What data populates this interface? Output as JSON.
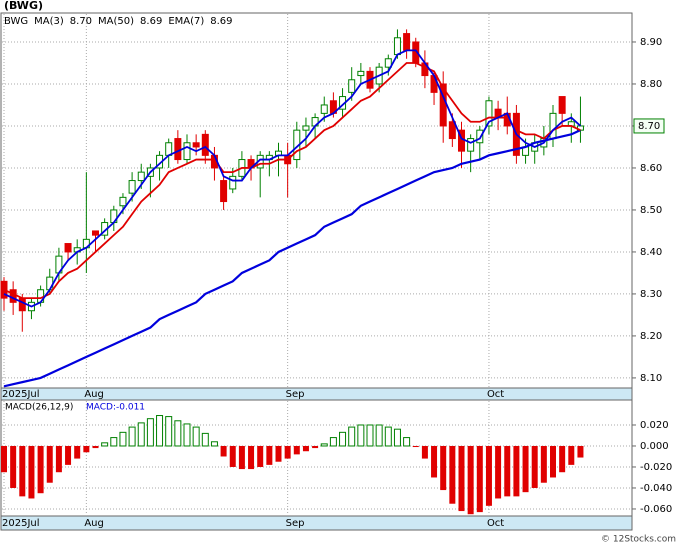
{
  "chart_data": [
    {
      "type": "candlestick",
      "title": "(BWG)",
      "categories": [
        "2025Jul",
        null,
        null,
        null,
        null,
        null,
        null,
        null,
        null,
        "Aug",
        null,
        null,
        null,
        null,
        null,
        null,
        null,
        null,
        null,
        null,
        null,
        null,
        null,
        null,
        null,
        null,
        null,
        null,
        null,
        null,
        null,
        "Sep",
        null,
        null,
        null,
        null,
        null,
        null,
        null,
        null,
        null,
        null,
        null,
        null,
        null,
        null,
        null,
        null,
        null,
        null,
        null,
        null,
        null,
        "Oct",
        null,
        null,
        null,
        null,
        null,
        null,
        null,
        null,
        null,
        null
      ],
      "open": [
        8.33,
        8.31,
        8.29,
        8.26,
        8.28,
        8.31,
        8.35,
        8.42,
        8.4,
        8.41,
        8.45,
        8.44,
        8.47,
        8.51,
        8.54,
        8.57,
        8.58,
        8.6,
        8.63,
        8.67,
        8.62,
        8.66,
        8.68,
        8.63,
        8.57,
        8.55,
        8.58,
        8.62,
        8.6,
        8.62,
        8.63,
        8.63,
        8.62,
        8.69,
        8.7,
        8.73,
        8.76,
        8.74,
        8.78,
        8.82,
        8.83,
        8.8,
        8.84,
        8.87,
        8.92,
        8.9,
        8.85,
        8.82,
        8.8,
        8.71,
        8.69,
        8.64,
        8.66,
        8.7,
        8.74,
        8.73,
        8.73,
        8.63,
        8.64,
        8.65,
        8.67,
        8.77,
        8.7,
        8.69
      ],
      "high": [
        8.34,
        8.33,
        8.3,
        8.29,
        8.32,
        8.36,
        8.41,
        8.42,
        8.43,
        8.59,
        8.45,
        8.48,
        8.51,
        8.54,
        8.59,
        8.61,
        8.61,
        8.64,
        8.67,
        8.69,
        8.68,
        8.68,
        8.69,
        8.65,
        8.58,
        8.6,
        8.64,
        8.63,
        8.64,
        8.64,
        8.66,
        8.66,
        8.71,
        8.72,
        8.73,
        8.77,
        8.78,
        8.79,
        8.84,
        8.85,
        8.84,
        8.85,
        8.87,
        8.93,
        8.93,
        8.91,
        8.88,
        8.83,
        8.83,
        8.73,
        8.71,
        8.68,
        8.7,
        8.77,
        8.76,
        8.77,
        8.75,
        8.67,
        8.68,
        8.7,
        8.75,
        8.77,
        8.73,
        8.77
      ],
      "low": [
        8.26,
        8.25,
        8.21,
        8.24,
        8.27,
        8.3,
        8.33,
        8.38,
        8.37,
        8.35,
        8.4,
        8.43,
        8.45,
        8.49,
        8.52,
        8.55,
        8.53,
        8.57,
        8.6,
        8.61,
        8.61,
        8.63,
        8.61,
        8.57,
        8.5,
        8.54,
        8.57,
        8.57,
        8.53,
        8.58,
        8.58,
        8.53,
        8.6,
        8.65,
        8.67,
        8.71,
        8.72,
        8.72,
        8.76,
        8.8,
        8.78,
        8.78,
        8.82,
        8.86,
        8.86,
        8.84,
        8.79,
        8.75,
        8.66,
        8.65,
        8.6,
        8.59,
        8.62,
        8.68,
        8.69,
        8.68,
        8.61,
        8.61,
        8.61,
        8.63,
        8.65,
        8.7,
        8.66,
        8.66
      ],
      "close": [
        8.29,
        8.28,
        8.26,
        8.28,
        8.31,
        8.34,
        8.39,
        8.4,
        8.41,
        8.43,
        8.44,
        8.47,
        8.5,
        8.53,
        8.57,
        8.59,
        8.6,
        8.63,
        8.66,
        8.62,
        8.66,
        8.65,
        8.63,
        8.6,
        8.52,
        8.58,
        8.62,
        8.6,
        8.63,
        8.63,
        8.64,
        8.61,
        8.69,
        8.7,
        8.72,
        8.75,
        8.73,
        8.77,
        8.81,
        8.83,
        8.79,
        8.84,
        8.86,
        8.91,
        8.88,
        8.85,
        8.82,
        8.78,
        8.7,
        8.67,
        8.64,
        8.67,
        8.69,
        8.76,
        8.72,
        8.7,
        8.63,
        8.65,
        8.66,
        8.67,
        8.73,
        8.73,
        8.71,
        8.7
      ],
      "up_color": "#008000",
      "down_color": "#e00000",
      "series": [
        {
          "name": "MA(50)",
          "legend_value": "8.69",
          "color": "#0000dd",
          "width": 2.2,
          "values": [
            8.08,
            8.085,
            8.09,
            8.095,
            8.1,
            8.11,
            8.12,
            8.13,
            8.14,
            8.15,
            8.16,
            8.17,
            8.18,
            8.19,
            8.2,
            8.21,
            8.22,
            8.24,
            8.25,
            8.26,
            8.27,
            8.28,
            8.3,
            8.31,
            8.32,
            8.33,
            8.35,
            8.36,
            8.37,
            8.38,
            8.4,
            8.41,
            8.42,
            8.43,
            8.44,
            8.46,
            8.47,
            8.48,
            8.49,
            8.51,
            8.52,
            8.53,
            8.54,
            8.55,
            8.56,
            8.57,
            8.58,
            8.59,
            8.595,
            8.6,
            8.61,
            8.615,
            8.62,
            8.63,
            8.635,
            8.64,
            8.645,
            8.65,
            8.66,
            8.665,
            8.67,
            8.675,
            8.68,
            8.69
          ]
        },
        {
          "name": "EMA(7)",
          "legend_value": "8.69",
          "color": "#e00000",
          "width": 1.8,
          "values": [
            8.31,
            8.3,
            8.29,
            8.29,
            8.29,
            8.3,
            8.33,
            8.35,
            8.36,
            8.38,
            8.4,
            8.42,
            8.44,
            8.46,
            8.49,
            8.52,
            8.54,
            8.56,
            8.59,
            8.6,
            8.61,
            8.62,
            8.62,
            8.62,
            8.59,
            8.59,
            8.6,
            8.6,
            8.61,
            8.61,
            8.62,
            8.62,
            8.64,
            8.65,
            8.67,
            8.69,
            8.7,
            8.72,
            8.74,
            8.76,
            8.77,
            8.79,
            8.81,
            8.83,
            8.85,
            8.85,
            8.84,
            8.83,
            8.79,
            8.76,
            8.73,
            8.71,
            8.71,
            8.72,
            8.72,
            8.72,
            8.69,
            8.68,
            8.68,
            8.67,
            8.69,
            8.7,
            8.7,
            8.69
          ]
        },
        {
          "name": "MA(3)",
          "legend_value": "8.70",
          "color": "#0000dd",
          "width": 1.8,
          "values": [
            8.3,
            8.29,
            8.28,
            8.27,
            8.28,
            8.31,
            8.35,
            8.38,
            8.4,
            8.41,
            8.43,
            8.45,
            8.47,
            8.5,
            8.53,
            8.56,
            8.59,
            8.61,
            8.63,
            8.64,
            8.65,
            8.64,
            8.65,
            8.63,
            8.58,
            8.57,
            8.57,
            8.6,
            8.62,
            8.62,
            8.63,
            8.63,
            8.65,
            8.67,
            8.7,
            8.72,
            8.73,
            8.75,
            8.77,
            8.8,
            8.81,
            8.82,
            8.83,
            8.87,
            8.88,
            8.88,
            8.85,
            8.82,
            8.77,
            8.72,
            8.67,
            8.66,
            8.67,
            8.71,
            8.72,
            8.73,
            8.68,
            8.66,
            8.65,
            8.66,
            8.69,
            8.71,
            8.72,
            8.7
          ]
        }
      ],
      "symbol": "BWG",
      "last_price": {
        "value": 8.7,
        "label": "8.70"
      },
      "ylim": [
        8.076,
        8.969
      ],
      "yticks": [
        {
          "value": 8.1,
          "label": "8.10"
        },
        {
          "value": 8.2,
          "label": "8.20"
        },
        {
          "value": 8.3,
          "label": "8.30"
        },
        {
          "value": 8.4,
          "label": "8.40"
        },
        {
          "value": 8.5,
          "label": "8.50"
        },
        {
          "value": 8.6,
          "label": "8.60"
        },
        {
          "value": 8.7,
          "label": "8.70"
        },
        {
          "value": 8.8,
          "label": "8.80"
        },
        {
          "value": 8.9,
          "label": "8.90"
        }
      ],
      "grid": true
    },
    {
      "type": "histogram_bar",
      "title": "MACD(26,12,9)",
      "subtitle": "MACD:-0.011",
      "categories": [
        "2025Jul",
        null,
        null,
        null,
        null,
        null,
        null,
        null,
        null,
        "Aug",
        null,
        null,
        null,
        null,
        null,
        null,
        null,
        null,
        null,
        null,
        null,
        null,
        null,
        null,
        null,
        null,
        null,
        null,
        null,
        null,
        null,
        "Sep",
        null,
        null,
        null,
        null,
        null,
        null,
        null,
        null,
        null,
        null,
        null,
        null,
        null,
        null,
        null,
        null,
        null,
        null,
        null,
        null,
        null,
        "Oct",
        null,
        null,
        null,
        null,
        null,
        null,
        null,
        null,
        null,
        null
      ],
      "values": [
        -0.025,
        -0.04,
        -0.048,
        -0.05,
        -0.045,
        -0.035,
        -0.025,
        -0.018,
        -0.012,
        -0.006,
        -0.002,
        0.003,
        0.008,
        0.013,
        0.018,
        0.022,
        0.026,
        0.029,
        0.028,
        0.024,
        0.021,
        0.018,
        0.012,
        0.004,
        -0.01,
        -0.02,
        -0.022,
        -0.022,
        -0.02,
        -0.018,
        -0.015,
        -0.012,
        -0.008,
        -0.005,
        -0.002,
        0.002,
        0.008,
        0.013,
        0.018,
        0.02,
        0.02,
        0.02,
        0.018,
        0.016,
        0.008,
        -0.001,
        -0.012,
        -0.03,
        -0.042,
        -0.055,
        -0.062,
        -0.065,
        -0.063,
        -0.057,
        -0.05,
        -0.048,
        -0.048,
        -0.044,
        -0.04,
        -0.035,
        -0.03,
        -0.025,
        -0.018,
        -0.011
      ],
      "up_color": "#008000",
      "down_color": "#e00000",
      "ylim": [
        -0.0667,
        0.0438
      ],
      "yticks": [
        {
          "value": 0.02,
          "label": "0.020"
        },
        {
          "value": 0,
          "label": "0.000"
        },
        {
          "value": -0.02,
          "label": "-0.020"
        },
        {
          "value": -0.04,
          "label": "-0.040"
        },
        {
          "value": -0.06,
          "label": "-0.060"
        }
      ],
      "grid": true
    }
  ],
  "footer": "© 12Stocks.com"
}
